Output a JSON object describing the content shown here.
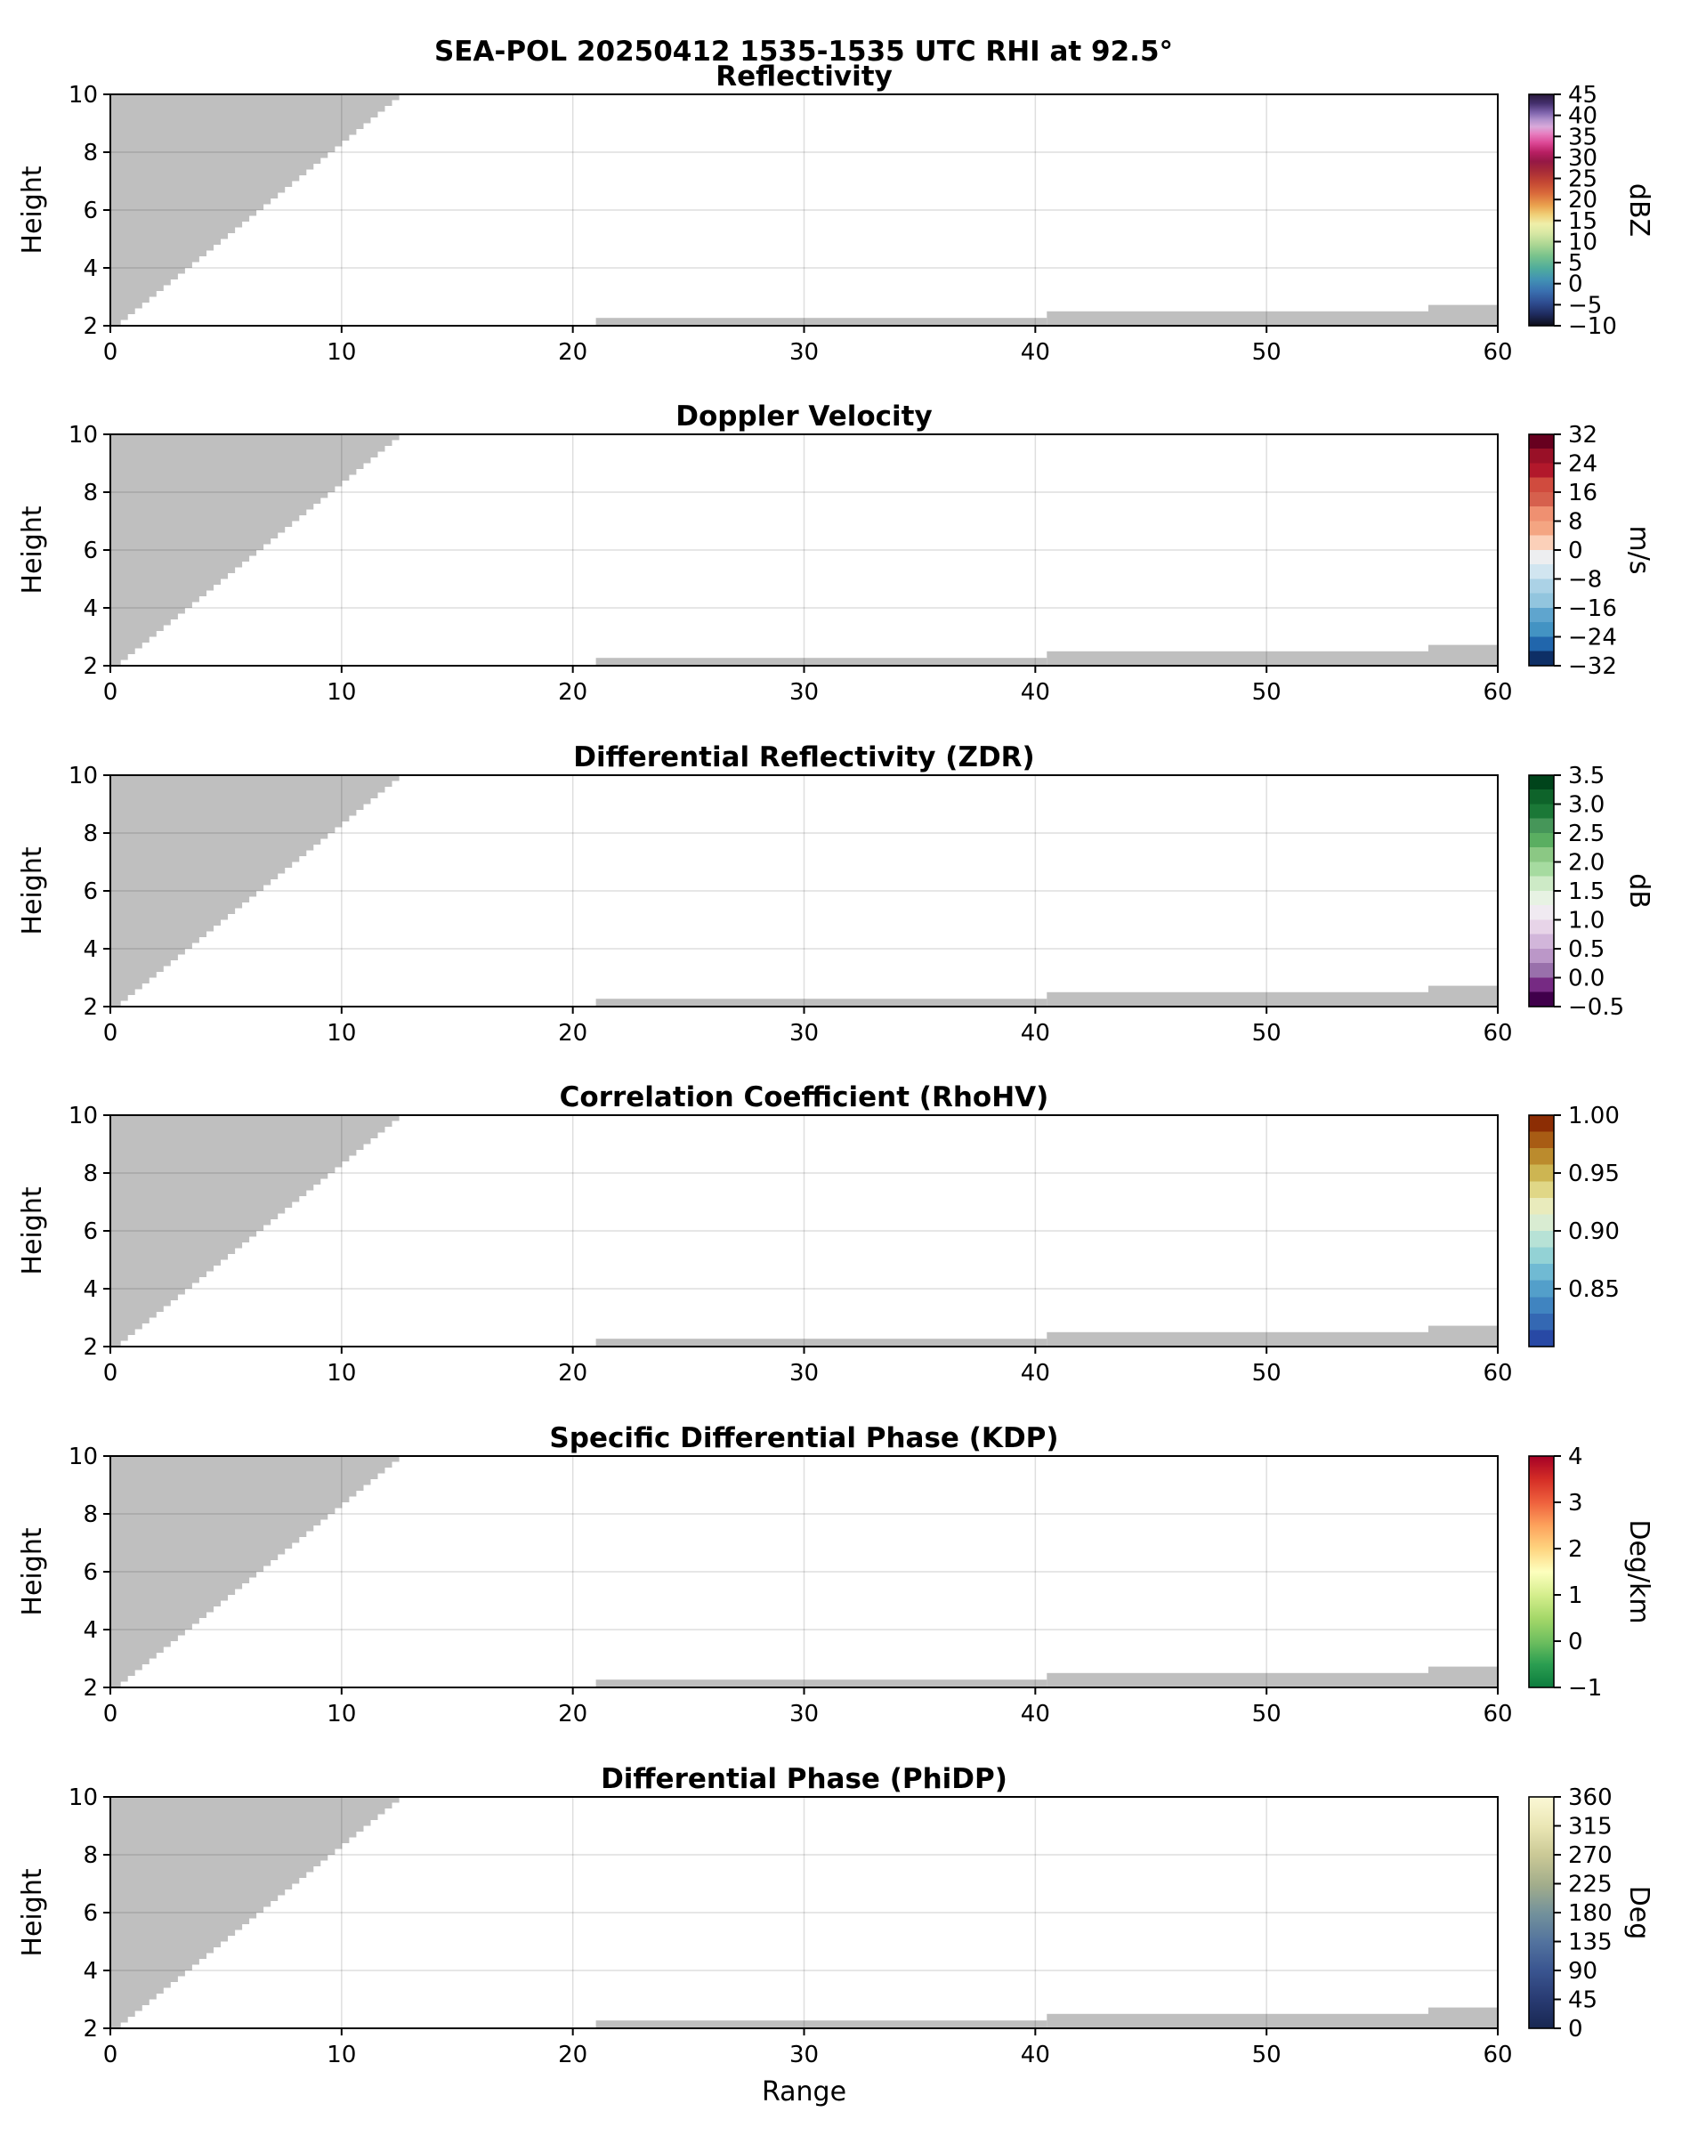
{
  "figure": {
    "title": "SEA-POL 20250412 1535-1535 UTC RHI at 92.5°",
    "xlabel": "Range",
    "ylabel": "Height"
  },
  "chart_data": {
    "type": "heatmap",
    "title": "SEA-POL 20250412 1535-1535 UTC RHI at 92.5°",
    "xlabel": "Range",
    "ylabel": "Height",
    "xlim": [
      0,
      60
    ],
    "ylim": [
      2,
      10
    ],
    "x_ticks": [
      0,
      10,
      20,
      30,
      40,
      50,
      60
    ],
    "y_ticks": [
      2,
      4,
      6,
      8,
      10
    ],
    "grid": true,
    "grid_color": "rgba(0,0,0,0.13)",
    "mask_color": "#bfbfbf",
    "no_data_mask": {
      "description": "gray no-data regions, identical in all six panels",
      "wedge": {
        "bottom_x": 0.45,
        "bottom_y": 2,
        "top_x": 12.8,
        "top_y": 10,
        "steps": 40
      },
      "strips": [
        {
          "x_start": 21.0,
          "x_end": 40.5,
          "y_bottom": 2,
          "y_top": 2.27
        },
        {
          "x_start": 40.5,
          "x_end": 57.0,
          "y_bottom": 2,
          "y_top": 2.5
        },
        {
          "x_start": 57.0,
          "x_end": 60.0,
          "y_bottom": 2,
          "y_top": 2.72
        }
      ]
    },
    "panels": [
      {
        "title": "Reflectivity",
        "unit": "dBZ",
        "vmin": -10,
        "vmax": 45,
        "cbar_ticks": [
          {
            "value": 45,
            "label": "45"
          },
          {
            "value": 40,
            "label": "40"
          },
          {
            "value": 35,
            "label": "35"
          },
          {
            "value": 30,
            "label": "30"
          },
          {
            "value": 25,
            "label": "25"
          },
          {
            "value": 20,
            "label": "20"
          },
          {
            "value": 15,
            "label": "15"
          },
          {
            "value": 10,
            "label": "10"
          },
          {
            "value": 5,
            "label": "5"
          },
          {
            "value": 0,
            "label": "0"
          },
          {
            "value": -5,
            "label": "−5"
          },
          {
            "value": -10,
            "label": "−10"
          }
        ],
        "style": "smooth",
        "colors": [
          [
            0.0,
            "#2a1b3d"
          ],
          [
            0.04,
            "#45306e"
          ],
          [
            0.08,
            "#8065ae"
          ],
          [
            0.11,
            "#b191cc"
          ],
          [
            0.14,
            "#d9a9da"
          ],
          [
            0.17,
            "#e77fc0"
          ],
          [
            0.21,
            "#dc4795"
          ],
          [
            0.25,
            "#b81f63"
          ],
          [
            0.29,
            "#951845"
          ],
          [
            0.33,
            "#a62a38"
          ],
          [
            0.38,
            "#c44733"
          ],
          [
            0.43,
            "#da6c3b"
          ],
          [
            0.48,
            "#eaa14e"
          ],
          [
            0.52,
            "#f0cf77"
          ],
          [
            0.56,
            "#efefa9"
          ],
          [
            0.6,
            "#d8e8a4"
          ],
          [
            0.65,
            "#abd693"
          ],
          [
            0.7,
            "#77c28c"
          ],
          [
            0.75,
            "#50ad9b"
          ],
          [
            0.8,
            "#4292b4"
          ],
          [
            0.85,
            "#3a70b0"
          ],
          [
            0.9,
            "#2f4d91"
          ],
          [
            0.95,
            "#1f2b5f"
          ],
          [
            1.0,
            "#0d0d18"
          ]
        ]
      },
      {
        "title": "Doppler Velocity",
        "unit": "m/s",
        "vmin": -32,
        "vmax": 32,
        "cbar_ticks": [
          {
            "value": 32,
            "label": "32"
          },
          {
            "value": 24,
            "label": "24"
          },
          {
            "value": 16,
            "label": "16"
          },
          {
            "value": 8,
            "label": "8"
          },
          {
            "value": 0,
            "label": "0"
          },
          {
            "value": -8,
            "label": "−8"
          },
          {
            "value": -16,
            "label": "−16"
          },
          {
            "value": -24,
            "label": "−24"
          },
          {
            "value": -32,
            "label": "−32"
          }
        ],
        "style": "discrete",
        "colors": [
          "#67001f",
          "#991027",
          "#b2182b",
          "#d04b3e",
          "#d6604d",
          "#ef9071",
          "#f4a582",
          "#fbd0b9",
          "#edeef0",
          "#d1e5f0",
          "#abd2e6",
          "#92c5de",
          "#5fa5ce",
          "#4393c3",
          "#2166ac",
          "#0e2f66"
        ]
      },
      {
        "title": "Differential Reflectivity (ZDR)",
        "unit": "dB",
        "vmin": -0.5,
        "vmax": 3.5,
        "cbar_ticks": [
          {
            "value": 3.5,
            "label": "3.5"
          },
          {
            "value": 3.0,
            "label": "3.0"
          },
          {
            "value": 2.5,
            "label": "2.5"
          },
          {
            "value": 2.0,
            "label": "2.0"
          },
          {
            "value": 1.5,
            "label": "1.5"
          },
          {
            "value": 1.0,
            "label": "1.0"
          },
          {
            "value": 0.5,
            "label": "0.5"
          },
          {
            "value": 0.0,
            "label": "0.0"
          },
          {
            "value": -0.5,
            "label": "−0.5"
          }
        ],
        "style": "discrete",
        "colors": [
          "#00441b",
          "#0e632a",
          "#1b7837",
          "#469659",
          "#5aae61",
          "#8bc884",
          "#a6dba0",
          "#cdeac6",
          "#e7f2e3",
          "#f0eaf1",
          "#e7d4e8",
          "#d2b6da",
          "#bb97c8",
          "#9970ab",
          "#762a83",
          "#40004b"
        ]
      },
      {
        "title": "Correlation Coefficient (RhoHV)",
        "unit": "",
        "vmin": 0.8,
        "vmax": 1.0,
        "cbar_ticks": [
          {
            "value": 1.0,
            "label": "1.00"
          },
          {
            "value": 0.95,
            "label": "0.95"
          },
          {
            "value": 0.9,
            "label": "0.90"
          },
          {
            "value": 0.85,
            "label": "0.85"
          }
        ],
        "style": "discrete",
        "colors": [
          "#8c2d04",
          "#a85c14",
          "#bb8b2d",
          "#cdb552",
          "#e0d787",
          "#e9ebbc",
          "#d9ecd2",
          "#b7e2d6",
          "#93d2d5",
          "#70bad3",
          "#539fca",
          "#4084c0",
          "#3468b3",
          "#2849a5"
        ]
      },
      {
        "title": "Specific Differential Phase (KDP)",
        "unit": "Deg/km",
        "vmin": -1,
        "vmax": 4,
        "cbar_ticks": [
          {
            "value": 4,
            "label": "4"
          },
          {
            "value": 3,
            "label": "3"
          },
          {
            "value": 2,
            "label": "2"
          },
          {
            "value": 1,
            "label": "1"
          },
          {
            "value": 0,
            "label": "0"
          },
          {
            "value": -1,
            "label": "−1"
          }
        ],
        "style": "smooth",
        "colors": [
          [
            0.0,
            "#a50026"
          ],
          [
            0.1,
            "#d42d26"
          ],
          [
            0.2,
            "#ee613d"
          ],
          [
            0.3,
            "#fda25c"
          ],
          [
            0.4,
            "#fed47f"
          ],
          [
            0.5,
            "#fdffbe"
          ],
          [
            0.6,
            "#d5ee8d"
          ],
          [
            0.7,
            "#a5d869"
          ],
          [
            0.8,
            "#6fbf5f"
          ],
          [
            0.9,
            "#2b9e51"
          ],
          [
            1.0,
            "#0c7c3d"
          ]
        ]
      },
      {
        "title": "Differential Phase (PhiDP)",
        "unit": "Deg",
        "vmin": 0,
        "vmax": 360,
        "cbar_ticks": [
          {
            "value": 360,
            "label": "360"
          },
          {
            "value": 315,
            "label": "315"
          },
          {
            "value": 270,
            "label": "270"
          },
          {
            "value": 225,
            "label": "225"
          },
          {
            "value": 180,
            "label": "180"
          },
          {
            "value": 135,
            "label": "135"
          },
          {
            "value": 90,
            "label": "90"
          },
          {
            "value": 45,
            "label": "45"
          },
          {
            "value": 0,
            "label": "0"
          }
        ],
        "style": "smooth",
        "colors": [
          [
            0.0,
            "#fbf8d6"
          ],
          [
            0.13,
            "#eae6b4"
          ],
          [
            0.25,
            "#cbc996"
          ],
          [
            0.38,
            "#a2ad8b"
          ],
          [
            0.5,
            "#74929b"
          ],
          [
            0.63,
            "#52729e"
          ],
          [
            0.75,
            "#3a5590"
          ],
          [
            0.88,
            "#283a71"
          ],
          [
            1.0,
            "#182751"
          ]
        ]
      }
    ]
  }
}
